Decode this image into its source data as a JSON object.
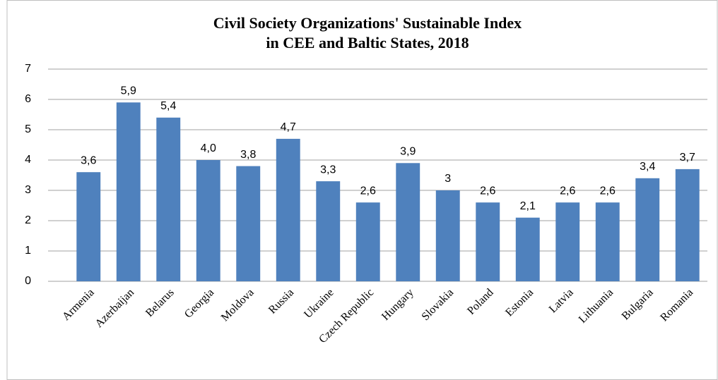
{
  "chart_data": {
    "type": "bar",
    "title": [
      "Civil Society Organizations' Sustainable Index",
      "in CEE and Baltic States, 2018"
    ],
    "categories": [
      "Armenia",
      "Azerbaijan",
      "Belarus",
      "Georgia",
      "Moldova",
      "Russia",
      "Ukraine",
      "Czech Republic",
      "Hungary",
      "Slovakia",
      "Poland",
      "Estonia",
      "Latvia",
      "Lithuania",
      "Bulgaria",
      "Romania"
    ],
    "values": [
      3.6,
      5.9,
      5.4,
      4.0,
      3.8,
      4.7,
      3.3,
      2.6,
      3.9,
      3,
      2.6,
      2.1,
      2.6,
      2.6,
      3.4,
      3.7
    ],
    "value_labels": [
      "3,6",
      "5,9",
      "5,4",
      "4,0",
      "3,8",
      "4,7",
      "3,3",
      "2,6",
      "3,9",
      "3",
      "2,6",
      "2,1",
      "2,6",
      "2,6",
      "3,4",
      "3,7"
    ],
    "color": "#4f81bd",
    "ylim": [
      0,
      7
    ],
    "yticks": [
      0,
      1,
      2,
      3,
      4,
      5,
      6,
      7
    ],
    "grid": true
  }
}
